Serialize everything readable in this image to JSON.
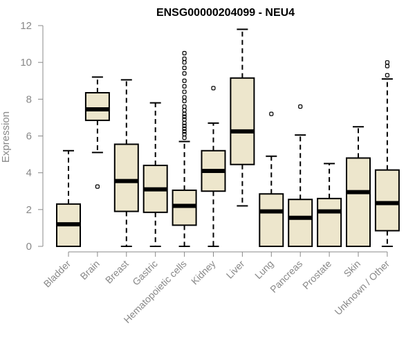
{
  "chart_data": {
    "type": "boxplot",
    "title": "ENSG00000204099 - NEU4",
    "xlabel": "",
    "ylabel": "Expression",
    "ylim": [
      0,
      12
    ],
    "yticks": [
      0,
      2,
      4,
      6,
      8,
      10,
      12
    ],
    "box_color": "#ede6cc",
    "categories": [
      "Bladder",
      "Brain",
      "Breast",
      "Gastric",
      "Hematopoietic cells",
      "Kidney",
      "Liver",
      "Lung",
      "Pancreas",
      "Prostate",
      "Skin",
      "Unknown / Other"
    ],
    "boxes": [
      {
        "label": "Bladder",
        "whisker_low": 0,
        "q1": 0,
        "median": 1.2,
        "q3": 2.3,
        "whisker_high": 5.2,
        "outliers": []
      },
      {
        "label": "Brain",
        "whisker_low": 5.1,
        "q1": 6.85,
        "median": 7.45,
        "q3": 8.35,
        "whisker_high": 9.2,
        "outliers": [
          3.25
        ]
      },
      {
        "label": "Breast",
        "whisker_low": 0,
        "q1": 1.9,
        "median": 3.55,
        "q3": 5.55,
        "whisker_high": 9.05,
        "outliers": []
      },
      {
        "label": "Gastric",
        "whisker_low": 0,
        "q1": 1.85,
        "median": 3.1,
        "q3": 4.4,
        "whisker_high": 7.8,
        "outliers": []
      },
      {
        "label": "Hematopoietic cells",
        "whisker_low": 0,
        "q1": 1.15,
        "median": 2.2,
        "q3": 3.05,
        "whisker_high": 5.7,
        "outliers": [
          5.9,
          6.1,
          6.25,
          6.4,
          6.55,
          6.7,
          6.9,
          7.05,
          7.2,
          7.4,
          7.6,
          7.9,
          8.1,
          8.4,
          8.7,
          9.0,
          9.4,
          9.7,
          10.0,
          10.2,
          10.5
        ]
      },
      {
        "label": "Kidney",
        "whisker_low": 0,
        "q1": 3.0,
        "median": 4.1,
        "q3": 5.2,
        "whisker_high": 6.7,
        "outliers": [
          8.6
        ]
      },
      {
        "label": "Liver",
        "whisker_low": 2.2,
        "q1": 4.45,
        "median": 6.25,
        "q3": 9.15,
        "whisker_high": 11.8,
        "outliers": []
      },
      {
        "label": "Lung",
        "whisker_low": 0,
        "q1": 0,
        "median": 1.9,
        "q3": 2.85,
        "whisker_high": 4.9,
        "outliers": [
          7.2
        ]
      },
      {
        "label": "Pancreas",
        "whisker_low": 0,
        "q1": 0,
        "median": 1.55,
        "q3": 2.55,
        "whisker_high": 6.05,
        "outliers": [
          7.6
        ]
      },
      {
        "label": "Prostate",
        "whisker_low": 0,
        "q1": 0,
        "median": 1.9,
        "q3": 2.6,
        "whisker_high": 4.5,
        "outliers": []
      },
      {
        "label": "Skin",
        "whisker_low": 0,
        "q1": 0,
        "median": 2.95,
        "q3": 4.8,
        "whisker_high": 6.5,
        "outliers": []
      },
      {
        "label": "Unknown / Other",
        "whisker_low": 0,
        "q1": 0.85,
        "median": 2.35,
        "q3": 4.15,
        "whisker_high": 9.1,
        "outliers": [
          9.3,
          9.8,
          10.0
        ]
      }
    ]
  }
}
